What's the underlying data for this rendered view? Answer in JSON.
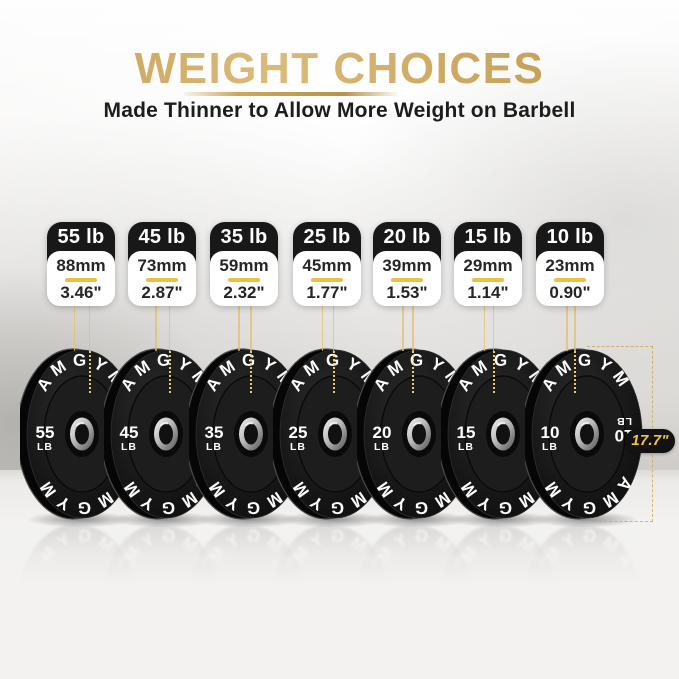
{
  "header": {
    "title": "WEIGHT CHOICES",
    "subtitle": "Made Thinner to Allow More Weight on Barbell"
  },
  "brand": "AMGYM",
  "accent": {
    "gold": "#c9a45c",
    "divider_yellow": "#eec03f",
    "badge_gold_text": "#f2c53d",
    "card_black": "#181818"
  },
  "plates": [
    {
      "label": "55 lb",
      "thickness_mm": "88mm",
      "thickness_in": "3.46\"",
      "weight": "55",
      "unit": "LB"
    },
    {
      "label": "45 lb",
      "thickness_mm": "73mm",
      "thickness_in": "2.87\"",
      "weight": "45",
      "unit": "LB"
    },
    {
      "label": "35 lb",
      "thickness_mm": "59mm",
      "thickness_in": "2.32\"",
      "weight": "35",
      "unit": "LB"
    },
    {
      "label": "25 lb",
      "thickness_mm": "45mm",
      "thickness_in": "1.77\"",
      "weight": "25",
      "unit": "LB"
    },
    {
      "label": "20 lb",
      "thickness_mm": "39mm",
      "thickness_in": "1.53\"",
      "weight": "20",
      "unit": "LB"
    },
    {
      "label": "15 lb",
      "thickness_mm": "29mm",
      "thickness_in": "1.14\"",
      "weight": "15",
      "unit": "LB"
    },
    {
      "label": "10 lb",
      "thickness_mm": "23mm",
      "thickness_in": "0.90\"",
      "weight": "10",
      "unit": "LB"
    }
  ],
  "diameter_annotation": {
    "label": "17.7\""
  }
}
